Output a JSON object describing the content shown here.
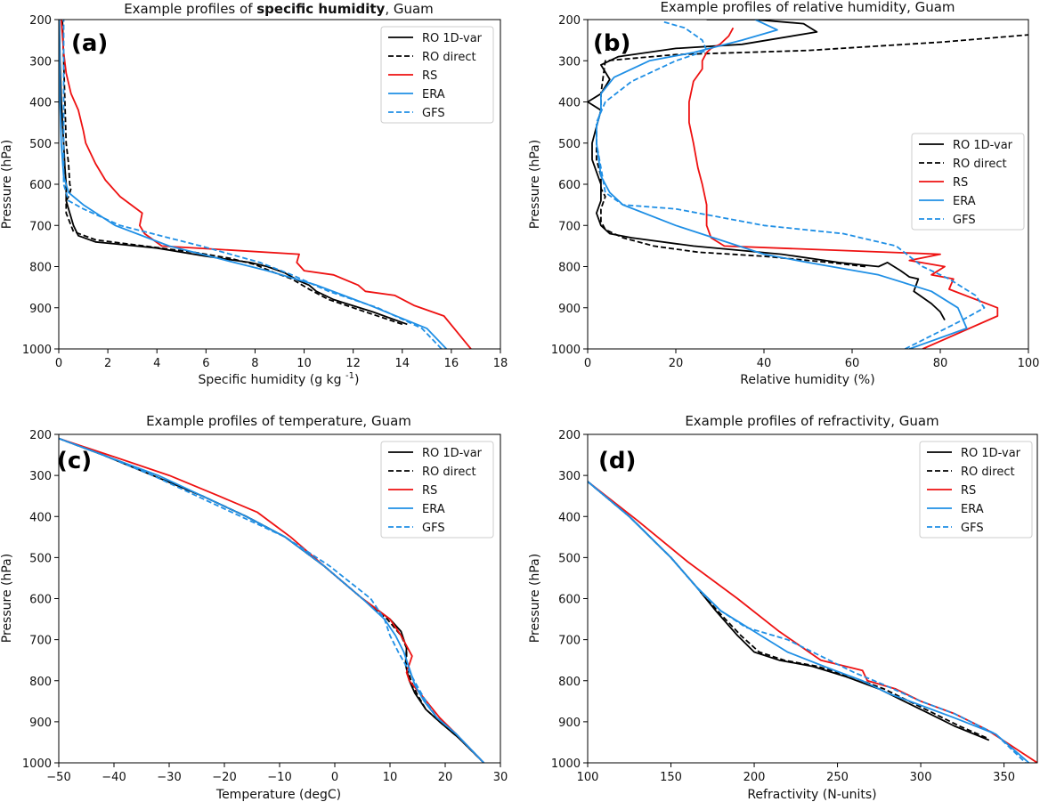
{
  "colors": {
    "ro_1dvar": "#000000",
    "ro_direct": "#000000",
    "rs": "#ee1111",
    "era": "#1f8fe5",
    "gfs": "#1f8fe5"
  },
  "chart_data": [
    {
      "type": "line",
      "panel_label": "(a)",
      "title_prefix": "Example profiles of",
      "title_main": "specific humidity",
      "title_suffix": ", Guam",
      "xlabel": "Specific humidity (g kg ",
      "xlabel_sup": "-1",
      "xlabel_end": ")",
      "ylabel": "Pressure (hPa)",
      "xlim": [
        0,
        18
      ],
      "ylim": [
        1000,
        200
      ],
      "xticks": [
        0,
        2,
        4,
        6,
        8,
        10,
        12,
        14,
        16,
        18
      ],
      "yticks": [
        200,
        300,
        400,
        500,
        600,
        700,
        800,
        900,
        1000
      ],
      "legend_position": "top-right",
      "series": [
        {
          "name": "RO 1D-var",
          "style": "solid",
          "color_key": "ro_1dvar",
          "x": [
            14.2,
            12.8,
            11.2,
            10.5,
            10.2,
            9.8,
            9.2,
            8.5,
            7.8,
            6.0,
            4.0,
            1.5,
            0.8,
            0.6,
            0.4,
            0.3,
            0.3,
            0.3,
            0.25,
            0.2,
            0.1,
            0.05,
            0.02
          ],
          "y": [
            940,
            910,
            880,
            860,
            845,
            835,
            815,
            800,
            790,
            775,
            755,
            740,
            725,
            700,
            660,
            640,
            620,
            600,
            560,
            500,
            400,
            300,
            200
          ]
        },
        {
          "name": "RO direct",
          "style": "dashed",
          "color_key": "ro_direct",
          "x": [
            14.0,
            12.5,
            11.0,
            10.2,
            9.5,
            8.8,
            8.0,
            7.0,
            5.5,
            3.5,
            1.5,
            0.6,
            0.5,
            0.3,
            0.3,
            0.4,
            0.5,
            0.45,
            0.4,
            0.3,
            0.25,
            0.2,
            0.15
          ],
          "y": [
            940,
            910,
            880,
            855,
            830,
            815,
            795,
            780,
            765,
            750,
            735,
            715,
            700,
            670,
            640,
            630,
            610,
            600,
            550,
            500,
            400,
            300,
            200
          ]
        },
        {
          "name": "RS",
          "style": "solid",
          "color_key": "rs",
          "x": [
            16.8,
            15.7,
            14.5,
            13.7,
            12.5,
            12.2,
            11.2,
            10.0,
            9.7,
            9.8,
            4.2,
            3.5,
            3.3,
            3.4,
            2.5,
            1.9,
            1.5,
            1.1,
            1.0,
            0.8,
            0.5,
            0.3,
            0.2,
            0.1
          ],
          "y": [
            1000,
            920,
            895,
            870,
            860,
            845,
            820,
            810,
            790,
            770,
            750,
            720,
            700,
            670,
            630,
            590,
            550,
            500,
            470,
            420,
            380,
            330,
            280,
            200
          ]
        },
        {
          "name": "ERA",
          "style": "solid",
          "color_key": "era",
          "x": [
            15.8,
            15.0,
            12.5,
            10.5,
            8.5,
            6.5,
            4.5,
            2.3,
            1.0,
            0.4,
            0.2,
            0.1,
            0.05,
            0.02
          ],
          "y": [
            1000,
            950,
            890,
            845,
            810,
            780,
            750,
            700,
            650,
            620,
            580,
            500,
            400,
            200
          ]
        },
        {
          "name": "GFS",
          "style": "dashed",
          "color_key": "gfs",
          "x": [
            15.6,
            14.8,
            13.0,
            11.0,
            9.5,
            8.2,
            5.8,
            2.5,
            1.0,
            0.4,
            0.2,
            0.2,
            0.2,
            0.2
          ],
          "y": [
            1000,
            950,
            900,
            860,
            820,
            790,
            750,
            700,
            660,
            640,
            600,
            500,
            350,
            200
          ]
        }
      ]
    },
    {
      "type": "line",
      "panel_label": "(b)",
      "title_prefix": "Example profiles of",
      "title_main": "relative humidity",
      "title_suffix": ", Guam",
      "xlabel": "Relative humidity (%)",
      "xlabel_sup": "",
      "xlabel_end": "",
      "ylabel": "Pressure (hPa)",
      "xlim": [
        0,
        100
      ],
      "ylim": [
        1000,
        200
      ],
      "xticks": [
        0,
        20,
        40,
        60,
        80,
        100
      ],
      "yticks": [
        200,
        300,
        400,
        500,
        600,
        700,
        800,
        900,
        1000
      ],
      "legend_position": "center-right",
      "series": [
        {
          "name": "RO 1D-var",
          "style": "solid",
          "color_key": "ro_1dvar",
          "x": [
            81,
            80,
            78,
            74,
            75,
            73,
            71,
            68,
            66,
            57,
            44,
            24,
            10,
            5,
            3,
            2,
            3,
            3,
            2,
            1,
            1,
            2,
            3,
            0,
            3,
            5,
            3,
            7,
            20,
            35,
            52,
            49,
            38,
            27
          ],
          "y": [
            930,
            910,
            890,
            860,
            830,
            825,
            810,
            790,
            800,
            790,
            770,
            750,
            730,
            720,
            700,
            670,
            640,
            600,
            570,
            540,
            500,
            460,
            420,
            400,
            380,
            345,
            310,
            290,
            270,
            260,
            230,
            210,
            200,
            200
          ],
          "xmax_clip": true
        },
        {
          "name": "RO direct",
          "style": "dashed",
          "color_key": "ro_direct",
          "x": [
            63,
            55,
            40,
            25,
            15,
            8,
            4,
            3,
            3,
            4,
            3,
            3,
            2,
            2,
            2,
            3,
            3,
            4,
            20,
            50,
            80,
            100
          ],
          "y": [
            800,
            790,
            775,
            765,
            750,
            730,
            710,
            690,
            660,
            630,
            610,
            580,
            540,
            500,
            460,
            420,
            380,
            300,
            285,
            275,
            255,
            237
          ]
        },
        {
          "name": "RS",
          "style": "solid",
          "color_key": "rs",
          "x": [
            76,
            93,
            93,
            82,
            83,
            78,
            81,
            73,
            80,
            31,
            28,
            27,
            27,
            26,
            25,
            24,
            23,
            23,
            24,
            26,
            26,
            27,
            28,
            30,
            32,
            33
          ],
          "y": [
            1000,
            920,
            900,
            855,
            830,
            820,
            800,
            785,
            770,
            750,
            730,
            700,
            650,
            600,
            560,
            500,
            450,
            400,
            350,
            320,
            300,
            280,
            270,
            260,
            240,
            220
          ]
        },
        {
          "name": "ERA",
          "style": "solid",
          "color_key": "era",
          "x": [
            73,
            86,
            84,
            78,
            66,
            50,
            40,
            20,
            8,
            5,
            3,
            2,
            2,
            3,
            3,
            6,
            14,
            24,
            35,
            43,
            38
          ],
          "y": [
            1000,
            950,
            900,
            860,
            820,
            790,
            770,
            700,
            650,
            620,
            580,
            500,
            460,
            420,
            380,
            340,
            300,
            280,
            250,
            225,
            200
          ]
        },
        {
          "name": "GFS",
          "style": "dashed",
          "color_key": "gfs",
          "x": [
            72,
            85,
            90,
            88,
            82,
            76,
            70,
            58,
            40,
            20,
            8,
            4,
            3,
            2,
            2,
            4,
            10,
            20,
            27,
            26,
            22,
            17
          ],
          "y": [
            1000,
            930,
            900,
            870,
            830,
            800,
            750,
            720,
            700,
            660,
            650,
            620,
            560,
            500,
            450,
            400,
            350,
            300,
            275,
            250,
            220,
            205
          ]
        }
      ]
    },
    {
      "type": "line",
      "panel_label": "(c)",
      "title_prefix": "Example profiles of",
      "title_main": "temperature",
      "title_suffix": ", Guam",
      "xlabel": "Temperature (degC)",
      "xlabel_sup": "",
      "xlabel_end": "",
      "ylabel": "Pressure (hPa)",
      "xlim": [
        -50,
        30
      ],
      "ylim": [
        1000,
        200
      ],
      "xticks": [
        -50,
        -40,
        -30,
        -20,
        -10,
        0,
        10,
        20,
        30
      ],
      "yticks": [
        200,
        300,
        400,
        500,
        600,
        700,
        800,
        900,
        1000
      ],
      "legend_position": "top-right",
      "series": [
        {
          "name": "RO 1D-var",
          "style": "solid",
          "color_key": "ro_1dvar",
          "x": [
            -50,
            -42,
            -33,
            -24,
            -16,
            -9,
            -2,
            5,
            10,
            12,
            13,
            12.8,
            13.5,
            14.5,
            16.5,
            19,
            22.5,
            27
          ],
          "y": [
            210,
            250,
            300,
            350,
            400,
            450,
            520,
            600,
            650,
            680,
            720,
            760,
            800,
            830,
            870,
            900,
            940,
            1000
          ]
        },
        {
          "name": "RO direct",
          "style": "dashed",
          "color_key": "ro_direct",
          "x": [
            -50,
            -42,
            -33,
            -24,
            -16,
            -9,
            -2,
            5,
            9.5,
            12,
            13,
            13,
            13.8,
            14.8,
            16.5,
            19,
            22.5,
            27
          ],
          "y": [
            210,
            250,
            300,
            350,
            400,
            450,
            520,
            600,
            650,
            690,
            720,
            760,
            800,
            830,
            870,
            900,
            940,
            1000
          ]
        },
        {
          "name": "RS",
          "style": "solid",
          "color_key": "rs",
          "x": [
            -50,
            -41,
            -30,
            -21,
            -14,
            -11,
            -8,
            -2,
            5,
            10,
            12,
            14,
            13,
            13.5,
            16,
            19,
            22,
            27
          ],
          "y": [
            210,
            250,
            300,
            350,
            390,
            420,
            450,
            520,
            600,
            650,
            690,
            740,
            780,
            800,
            840,
            890,
            930,
            1000
          ]
        },
        {
          "name": "ERA",
          "style": "solid",
          "color_key": "era",
          "x": [
            -50,
            -42,
            -32,
            -24,
            -16,
            -9,
            -2,
            5,
            9,
            11,
            12.5,
            13.5,
            14.5,
            16.2,
            18.5,
            22,
            27
          ],
          "y": [
            210,
            250,
            300,
            350,
            400,
            450,
            520,
            600,
            650,
            690,
            730,
            770,
            810,
            850,
            890,
            930,
            1000
          ]
        },
        {
          "name": "GFS",
          "style": "dashed",
          "color_key": "gfs",
          "x": [
            -50,
            -42,
            -33,
            -25,
            -17,
            -9,
            -1,
            6.5,
            9,
            10,
            11.5,
            13.2,
            14.8,
            16.5,
            18.5,
            22,
            27
          ],
          "y": [
            210,
            250,
            300,
            350,
            400,
            450,
            520,
            600,
            650,
            690,
            730,
            770,
            810,
            850,
            890,
            930,
            1000
          ]
        }
      ]
    },
    {
      "type": "line",
      "panel_label": "(d)",
      "title_prefix": "Example profiles of",
      "title_main": "refractivity",
      "title_suffix": ", Guam",
      "xlabel": "Refractivity (N-units)",
      "xlabel_sup": "",
      "xlabel_end": "",
      "ylabel": "Pressure (hPa)",
      "xlim": [
        100,
        370
      ],
      "ylim": [
        1000,
        200
      ],
      "xticks": [
        100,
        150,
        200,
        250,
        300,
        350
      ],
      "yticks": [
        200,
        300,
        400,
        500,
        600,
        700,
        800,
        900,
        1000
      ],
      "legend_position": "top-right",
      "series": [
        {
          "name": "RO 1D-var",
          "style": "solid",
          "color_key": "ro_1dvar",
          "x": [
            100,
            125,
            150,
            165,
            177,
            190,
            200,
            215,
            235,
            255,
            275,
            290,
            305,
            320,
            341
          ],
          "y": [
            315,
            400,
            500,
            570,
            630,
            690,
            730,
            750,
            765,
            790,
            820,
            850,
            880,
            910,
            945
          ]
        },
        {
          "name": "RO direct",
          "style": "dashed",
          "color_key": "ro_direct",
          "x": [
            100,
            125,
            150,
            165,
            178,
            192,
            203,
            218,
            238,
            258,
            278,
            293,
            308,
            323,
            340
          ],
          "y": [
            315,
            400,
            500,
            570,
            630,
            690,
            730,
            750,
            765,
            790,
            820,
            850,
            880,
            910,
            940
          ]
        },
        {
          "name": "RS",
          "style": "solid",
          "color_key": "rs",
          "x": [
            100,
            130,
            160,
            190,
            215,
            240,
            265,
            268,
            285,
            300,
            320,
            340,
            355,
            370
          ],
          "y": [
            315,
            410,
            510,
            600,
            680,
            750,
            775,
            800,
            820,
            850,
            880,
            920,
            960,
            1000
          ]
        },
        {
          "name": "ERA",
          "style": "solid",
          "color_key": "era",
          "x": [
            100,
            125,
            150,
            165,
            180,
            200,
            220,
            245,
            265,
            280,
            300,
            320,
            345,
            365
          ],
          "y": [
            315,
            400,
            500,
            570,
            630,
            680,
            730,
            770,
            800,
            830,
            860,
            890,
            930,
            1000
          ]
        },
        {
          "name": "GFS",
          "style": "dashed",
          "color_key": "gfs",
          "x": [
            100,
            125,
            150,
            167,
            180,
            195,
            220,
            240,
            260,
            278,
            300,
            320,
            345,
            363
          ],
          "y": [
            315,
            400,
            500,
            580,
            630,
            670,
            700,
            740,
            780,
            810,
            850,
            880,
            930,
            1000
          ]
        }
      ]
    }
  ]
}
